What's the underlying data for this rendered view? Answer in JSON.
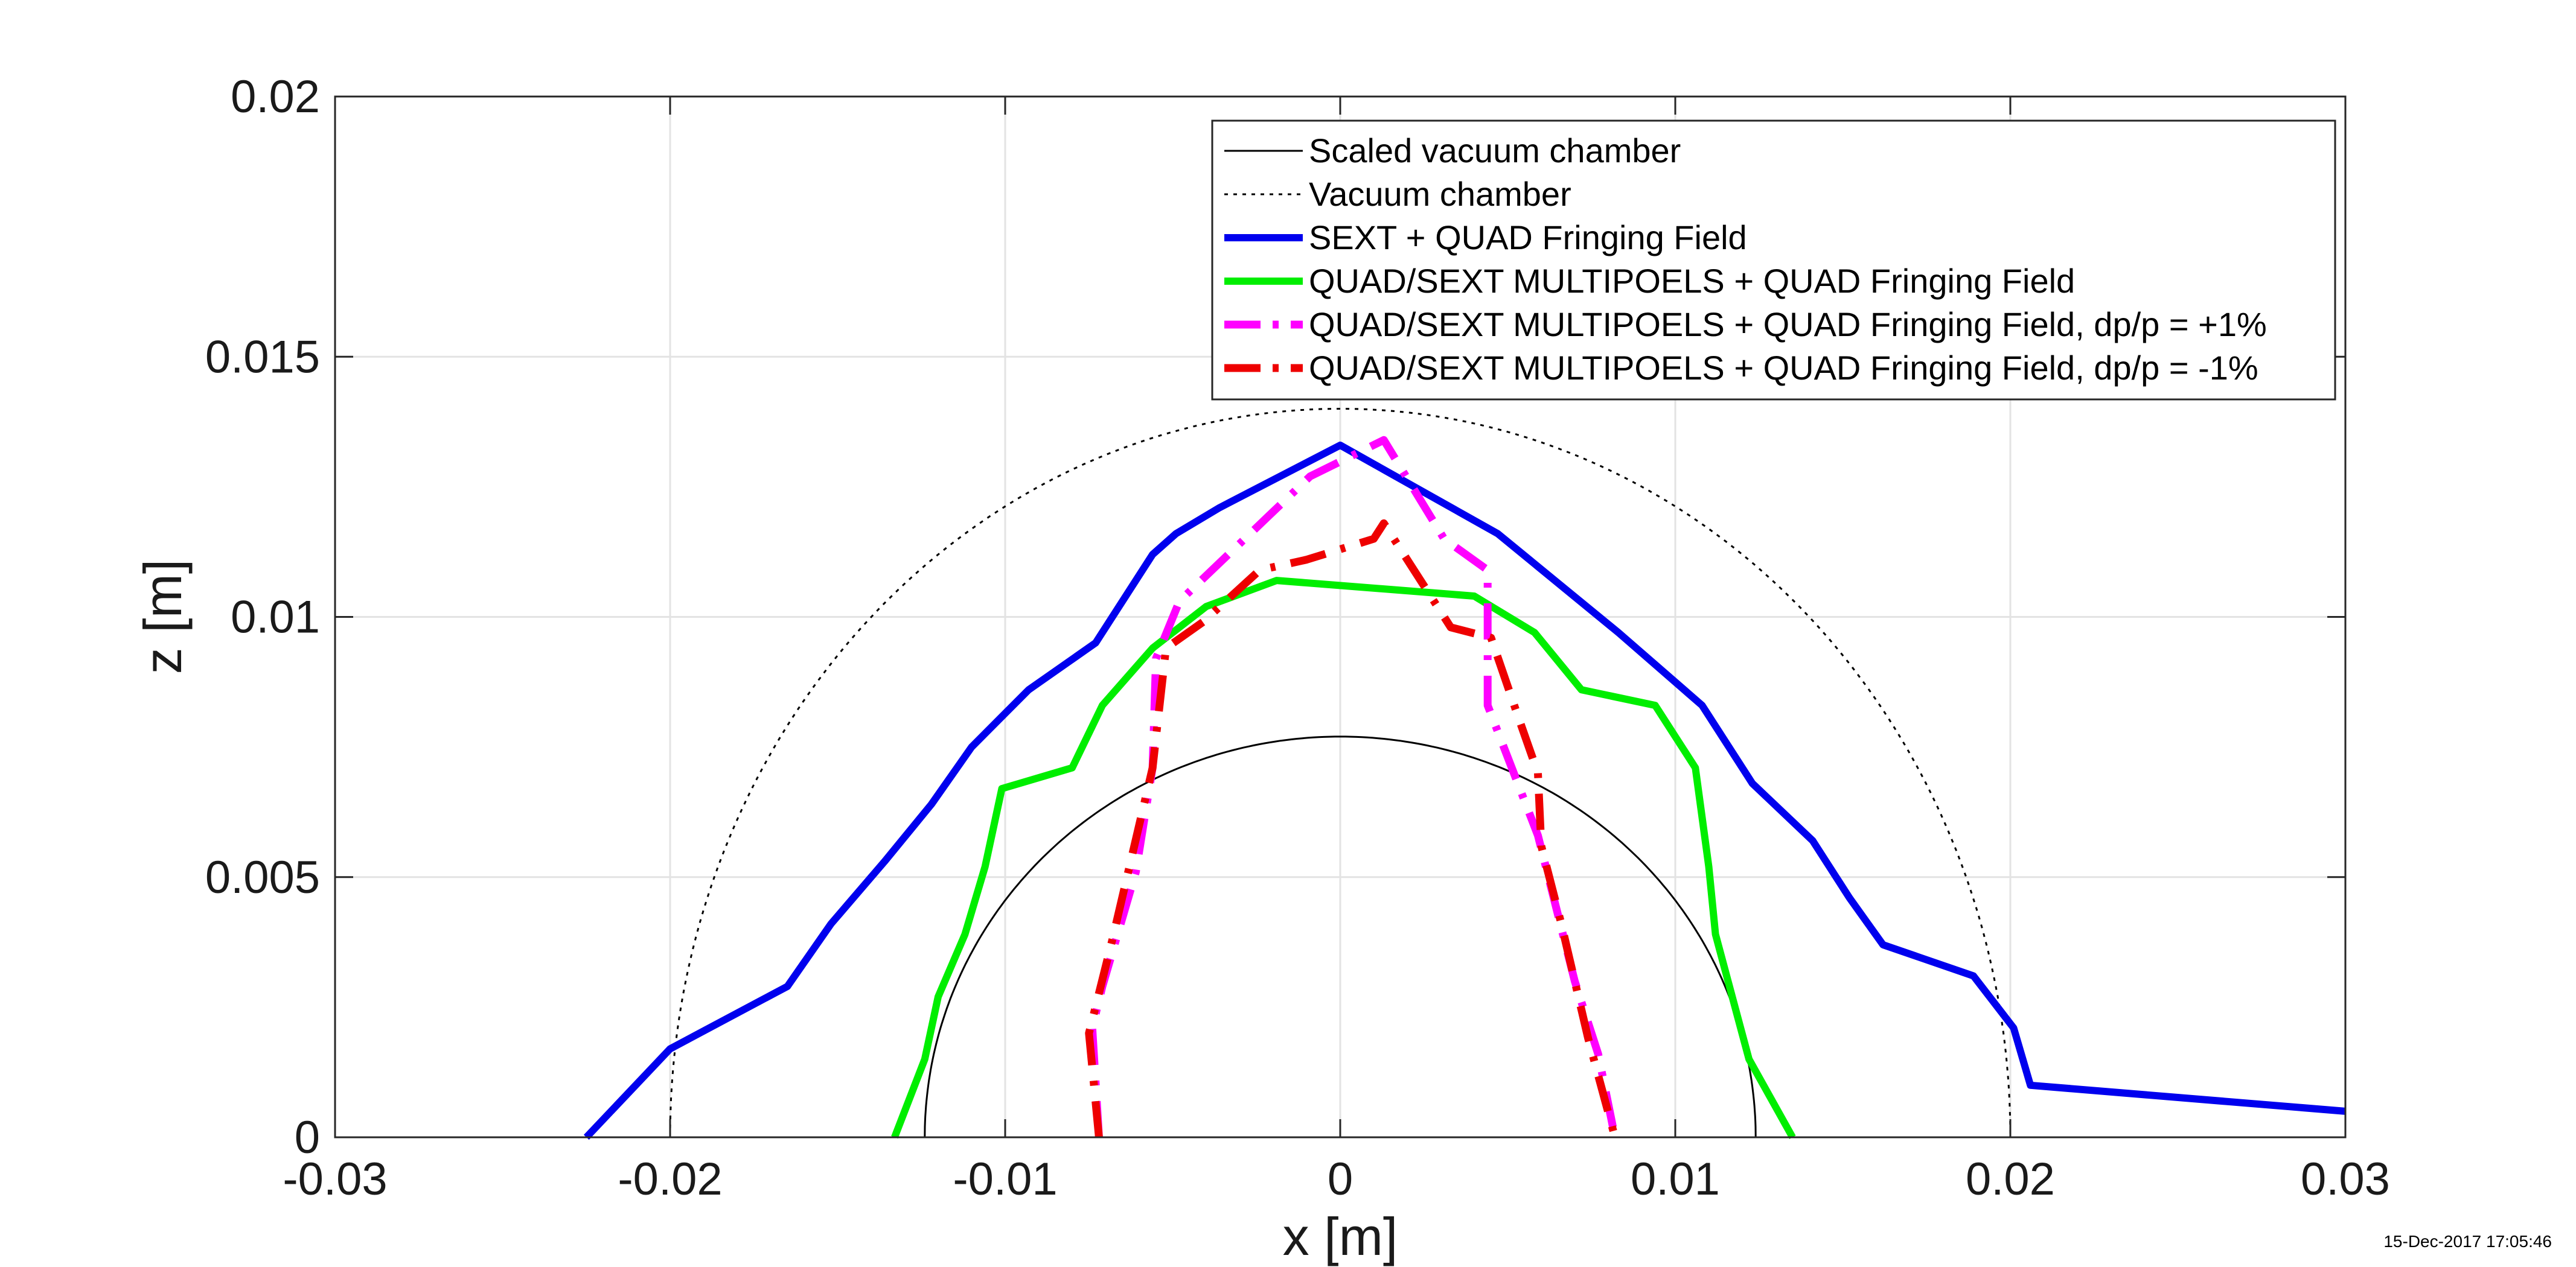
{
  "timestamp": "15-Dec-2017 17:05:46",
  "chart_data": {
    "type": "line",
    "xlabel": "x [m]",
    "ylabel": "z [m]",
    "xlim": [
      -0.03,
      0.03
    ],
    "ylim": [
      0,
      0.02
    ],
    "xticks": [
      -0.03,
      -0.02,
      -0.01,
      0,
      0.01,
      0.02,
      0.03
    ],
    "xtick_labels": [
      "-0.03",
      "-0.02",
      "-0.01",
      "0",
      "0.01",
      "0.02",
      "0.03"
    ],
    "yticks": [
      0,
      0.005,
      0.01,
      0.015,
      0.02
    ],
    "ytick_labels": [
      "0",
      "0.005",
      "0.01",
      "0.015",
      "0.02"
    ],
    "grid": true,
    "legend_position": "top-right",
    "series": [
      {
        "name": "Scaled vacuum chamber",
        "color": "#000000",
        "style": "solid-thin",
        "shape": "semi-ellipse",
        "semi_axis_x": 0.0124,
        "semi_axis_z": 0.0077
      },
      {
        "name": "Vacuum chamber",
        "color": "#000000",
        "style": "dotted-thin",
        "shape": "semi-ellipse",
        "semi_axis_x": 0.02,
        "semi_axis_z": 0.014
      },
      {
        "name": "SEXT + QUAD Fringing Field",
        "color": "#0000ee",
        "style": "solid",
        "points": [
          [
            -0.0225,
            0
          ],
          [
            -0.02,
            0.0017
          ],
          [
            -0.0165,
            0.0029
          ],
          [
            -0.0152,
            0.0041
          ],
          [
            -0.0136,
            0.0053
          ],
          [
            -0.0122,
            0.0064
          ],
          [
            -0.011,
            0.0075
          ],
          [
            -0.0093,
            0.0086
          ],
          [
            -0.0073,
            0.0095
          ],
          [
            -0.0056,
            0.0112
          ],
          [
            -0.0049,
            0.0116
          ],
          [
            -0.0036,
            0.0121
          ],
          [
            0,
            0.0133
          ],
          [
            0.0047,
            0.0116
          ],
          [
            0.0083,
            0.0097
          ],
          [
            0.0108,
            0.0083
          ],
          [
            0.0123,
            0.0068
          ],
          [
            0.0141,
            0.0057
          ],
          [
            0.0152,
            0.0046
          ],
          [
            0.0162,
            0.0037
          ],
          [
            0.0189,
            0.0031
          ],
          [
            0.0201,
            0.0021
          ],
          [
            0.0206,
            0.001
          ],
          [
            0.03,
            0.0005
          ]
        ]
      },
      {
        "name": "QUAD/SEXT MULTIPOELS + QUAD Fringing Field",
        "color": "#00ee00",
        "style": "solid",
        "points": [
          [
            -0.0133,
            0
          ],
          [
            -0.0124,
            0.0015
          ],
          [
            -0.012,
            0.0027
          ],
          [
            -0.0112,
            0.0039
          ],
          [
            -0.0106,
            0.0052
          ],
          [
            -0.0101,
            0.0067
          ],
          [
            -0.008,
            0.0071
          ],
          [
            -0.0071,
            0.0083
          ],
          [
            -0.0056,
            0.0094
          ],
          [
            -0.004,
            0.0102
          ],
          [
            -0.0019,
            0.0107
          ],
          [
            0.004,
            0.0104
          ],
          [
            0.0058,
            0.0097
          ],
          [
            0.0072,
            0.0086
          ],
          [
            0.0094,
            0.0083
          ],
          [
            0.0106,
            0.0071
          ],
          [
            0.011,
            0.0052
          ],
          [
            0.0112,
            0.0039
          ],
          [
            0.0122,
            0.0015
          ],
          [
            0.0135,
            0
          ]
        ]
      },
      {
        "name": "QUAD/SEXT MULTIPOELS + QUAD Fringing Field, dp/p = +1%",
        "color": "#ff00ff",
        "style": "dashdot",
        "points": [
          [
            -0.0072,
            0
          ],
          [
            -0.0074,
            0.0021
          ],
          [
            -0.0071,
            0.0029
          ],
          [
            -0.0061,
            0.0051
          ],
          [
            -0.0056,
            0.0071
          ],
          [
            -0.0055,
            0.0092
          ],
          [
            -0.0048,
            0.0103
          ],
          [
            -0.0022,
            0.0119
          ],
          [
            -0.0009,
            0.0127
          ],
          [
            0.0013,
            0.0134
          ],
          [
            0.0031,
            0.0115
          ],
          [
            0.0044,
            0.0109
          ],
          [
            0.0044,
            0.0083
          ],
          [
            0.0059,
            0.0058
          ],
          [
            0.007,
            0.003
          ],
          [
            0.0077,
            0.0016
          ],
          [
            0.0082,
            0
          ]
        ]
      },
      {
        "name": "QUAD/SEXT MULTIPOELS + QUAD Fringing Field, dp/p = -1%",
        "color": "#ee0000",
        "style": "dashdot",
        "points": [
          [
            -0.0072,
            0
          ],
          [
            -0.0075,
            0.002
          ],
          [
            -0.0068,
            0.0038
          ],
          [
            -0.0056,
            0.0071
          ],
          [
            -0.0052,
            0.0094
          ],
          [
            -0.0041,
            0.0099
          ],
          [
            -0.0024,
            0.0109
          ],
          [
            -0.001,
            0.0111
          ],
          [
            0.001,
            0.0115
          ],
          [
            0.0013,
            0.0118
          ],
          [
            0.0033,
            0.0098
          ],
          [
            0.0045,
            0.0096
          ],
          [
            0.0053,
            0.0081
          ],
          [
            0.0059,
            0.007
          ],
          [
            0.006,
            0.0056
          ],
          [
            0.0066,
            0.0041
          ],
          [
            0.0074,
            0.0019
          ],
          [
            0.0082,
            0
          ]
        ]
      }
    ]
  }
}
